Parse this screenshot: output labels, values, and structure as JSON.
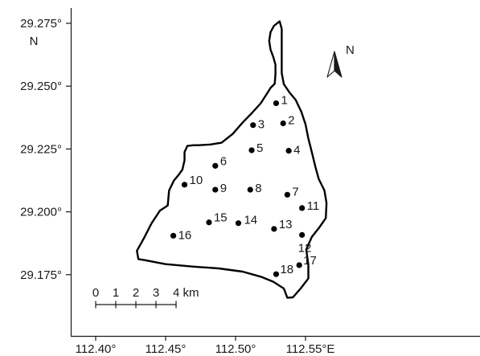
{
  "map": {
    "y_axis": {
      "ticks": [
        {
          "value": 29.275,
          "label": "29.275°"
        },
        {
          "value": 29.25,
          "label": "29.250°"
        },
        {
          "value": 29.225,
          "label": "29.225°"
        },
        {
          "value": 29.2,
          "label": "29.200°"
        },
        {
          "value": 29.175,
          "label": "29.175°"
        }
      ],
      "hemisphere_label": "N"
    },
    "x_axis": {
      "ticks": [
        {
          "value": 112.4,
          "label": "112.40°"
        },
        {
          "value": 112.45,
          "label": "112.45°"
        },
        {
          "value": 112.5,
          "label": "112.50°"
        },
        {
          "value": 112.55,
          "label": "112.55°E"
        }
      ]
    },
    "north_arrow_label": "N",
    "scale_bar": {
      "labels": [
        "0",
        "1",
        "2",
        "3",
        "4 km"
      ],
      "unit": "km",
      "length_km": 4
    },
    "boundary": [
      [
        112.474,
        29.2265
      ],
      [
        112.482,
        29.2268
      ],
      [
        112.49,
        29.2275
      ],
      [
        112.498,
        29.231
      ],
      [
        112.505,
        29.2355
      ],
      [
        112.512,
        29.2395
      ],
      [
        112.518,
        29.2432
      ],
      [
        112.523,
        29.2475
      ],
      [
        112.525,
        29.2493
      ],
      [
        112.528,
        29.251
      ],
      [
        112.5285,
        29.2548
      ],
      [
        112.5285,
        29.2585
      ],
      [
        112.527,
        29.2615
      ],
      [
        112.525,
        29.2645
      ],
      [
        112.524,
        29.268
      ],
      [
        112.525,
        29.2715
      ],
      [
        112.5275,
        29.274
      ],
      [
        112.5315,
        29.2758
      ],
      [
        112.533,
        29.2728
      ],
      [
        112.533,
        29.2675
      ],
      [
        112.533,
        29.2612
      ],
      [
        112.533,
        29.2552
      ],
      [
        112.5345,
        29.2508
      ],
      [
        112.5385,
        29.2475
      ],
      [
        112.543,
        29.2445
      ],
      [
        112.547,
        29.2398
      ],
      [
        112.55,
        29.2348
      ],
      [
        112.552,
        29.2292
      ],
      [
        112.5545,
        29.2238
      ],
      [
        112.557,
        29.218
      ],
      [
        112.5595,
        29.213
      ],
      [
        112.5635,
        29.2085
      ],
      [
        112.565,
        29.2035
      ],
      [
        112.5645,
        29.1975
      ],
      [
        112.5595,
        29.1935
      ],
      [
        112.5545,
        29.19
      ],
      [
        112.5505,
        29.185
      ],
      [
        112.552,
        29.179
      ],
      [
        112.552,
        29.1735
      ],
      [
        112.5465,
        29.1695
      ],
      [
        112.541,
        29.166
      ],
      [
        112.537,
        29.1658
      ],
      [
        112.5345,
        29.1695
      ],
      [
        112.527,
        29.1722
      ],
      [
        112.518,
        29.1742
      ],
      [
        112.505,
        29.1762
      ],
      [
        112.488,
        29.1775
      ],
      [
        112.47,
        29.1782
      ],
      [
        112.45,
        29.1792
      ],
      [
        112.435,
        29.1808
      ],
      [
        112.4305,
        29.1812
      ],
      [
        112.4295,
        29.1845
      ],
      [
        112.4345,
        29.1895
      ],
      [
        112.44,
        29.1955
      ],
      [
        112.446,
        29.2005
      ],
      [
        112.4515,
        29.2025
      ],
      [
        112.4525,
        29.2085
      ],
      [
        112.456,
        29.2125
      ],
      [
        112.459,
        29.2145
      ],
      [
        112.462,
        29.2168
      ],
      [
        112.4635,
        29.2205
      ],
      [
        112.4635,
        29.2238
      ],
      [
        112.4655,
        29.2262
      ],
      [
        112.47,
        29.2265
      ],
      [
        112.474,
        29.2265
      ]
    ],
    "sites": [
      {
        "id": "1",
        "lon": 112.529,
        "lat": 29.2432
      },
      {
        "id": "2",
        "lon": 112.534,
        "lat": 29.2352
      },
      {
        "id": "3",
        "lon": 112.5125,
        "lat": 29.2345
      },
      {
        "id": "4",
        "lon": 112.538,
        "lat": 29.2243
      },
      {
        "id": "5",
        "lon": 112.5115,
        "lat": 29.2245
      },
      {
        "id": "6",
        "lon": 112.4855,
        "lat": 29.2183
      },
      {
        "id": "7",
        "lon": 112.537,
        "lat": 29.2068
      },
      {
        "id": "8",
        "lon": 112.5105,
        "lat": 29.2088
      },
      {
        "id": "9",
        "lon": 112.4855,
        "lat": 29.2088
      },
      {
        "id": "10",
        "lon": 112.4635,
        "lat": 29.2108
      },
      {
        "id": "11",
        "lon": 112.5475,
        "lat": 29.2015
      },
      {
        "id": "12",
        "lon": 112.5475,
        "lat": 29.1908
      },
      {
        "id": "13",
        "lon": 112.5275,
        "lat": 29.1932
      },
      {
        "id": "14",
        "lon": 112.502,
        "lat": 29.1955
      },
      {
        "id": "15",
        "lon": 112.481,
        "lat": 29.1958
      },
      {
        "id": "16",
        "lon": 112.4555,
        "lat": 29.1905
      },
      {
        "id": "17",
        "lon": 112.5455,
        "lat": 29.1788
      },
      {
        "id": "18",
        "lon": 112.529,
        "lat": 29.1752
      }
    ]
  }
}
